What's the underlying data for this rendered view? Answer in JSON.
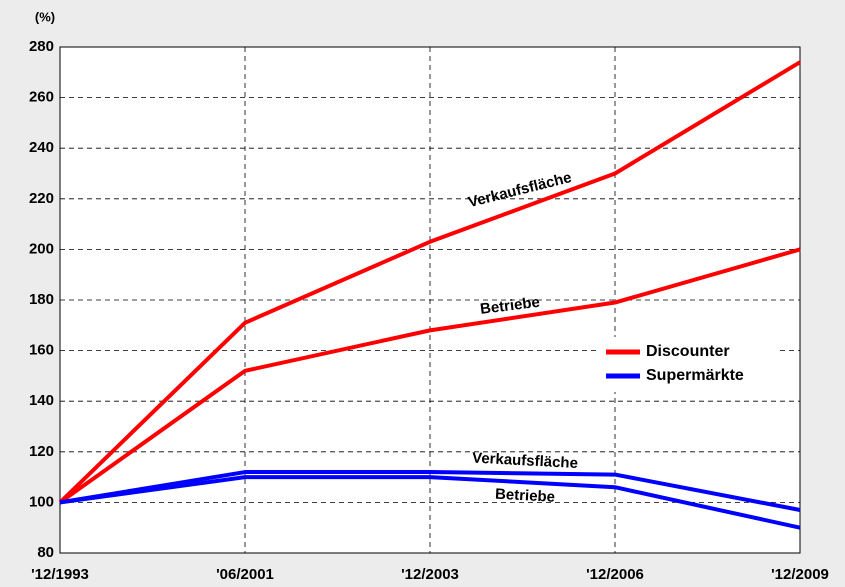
{
  "chart_data": {
    "type": "line",
    "unit": "(%)",
    "categories": [
      "'12/1993",
      "'06/2001",
      "'12/2003",
      "'12/2006",
      "'12/2009"
    ],
    "series": [
      {
        "name": "Discounter",
        "color": "#ff0000",
        "lines": [
          {
            "label": "Verkaufsfläche",
            "values": [
              100,
              171,
              203,
              230,
              274
            ]
          },
          {
            "label": "Betriebe",
            "values": [
              100,
              152,
              168,
              179,
              200
            ]
          }
        ]
      },
      {
        "name": "Supermärkte",
        "color": "#0000ff",
        "lines": [
          {
            "label": "Verkaufsfläche",
            "values": [
              100,
              112,
              112,
              111,
              97
            ]
          },
          {
            "label": "Betriebe",
            "values": [
              100,
              110,
              110,
              106,
              90
            ]
          }
        ]
      }
    ],
    "ylim": [
      80,
      280
    ],
    "yticks": [
      80,
      100,
      120,
      140,
      160,
      180,
      200,
      220,
      240,
      260,
      280
    ],
    "grid": true
  }
}
